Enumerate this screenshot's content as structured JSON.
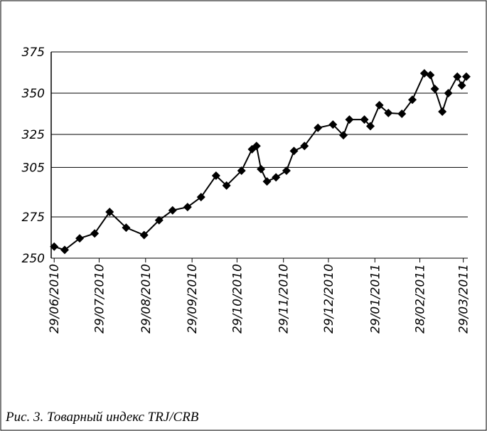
{
  "chart_data": {
    "type": "line",
    "caption": "Рис. 3. Товарный индекс TRJ/CRB",
    "x": [
      "2010-06-29",
      "2010-07-06",
      "2010-07-16",
      "2010-07-26",
      "2010-08-05",
      "2010-08-16",
      "2010-08-28",
      "2010-09-07",
      "2010-09-16",
      "2010-09-26",
      "2010-10-05",
      "2010-10-15",
      "2010-10-22",
      "2010-11-01",
      "2010-11-08",
      "2010-11-11",
      "2010-11-14",
      "2010-11-18",
      "2010-11-24",
      "2010-12-01",
      "2010-12-06",
      "2010-12-13",
      "2010-12-22",
      "2011-01-01",
      "2011-01-08",
      "2011-01-12",
      "2011-01-22",
      "2011-01-26",
      "2011-02-01",
      "2011-02-07",
      "2011-02-16",
      "2011-02-23",
      "2011-03-03",
      "2011-03-07",
      "2011-03-10",
      "2011-03-15",
      "2011-03-19",
      "2011-03-25",
      "2011-03-28",
      "2011-03-31"
    ],
    "series": [
      {
        "color": "#000000",
        "values": [
          257,
          255,
          262,
          265,
          278,
          268.5,
          264,
          273,
          279,
          281,
          287,
          300,
          294,
          303,
          316,
          318,
          304,
          296.5,
          299,
          303,
          315,
          318,
          329,
          331,
          324.5,
          334,
          334,
          330,
          342.7,
          338,
          337.5,
          346,
          362,
          361,
          352.6,
          338.8,
          350,
          360,
          354.7,
          360
        ]
      }
    ],
    "xlim": [
      "2010-06-27",
      "2011-04-01"
    ],
    "xticks": [
      {
        "value": "2010-06-29",
        "label": "29/06/2010"
      },
      {
        "value": "2010-07-29",
        "label": "29/07/2010"
      },
      {
        "value": "2010-08-29",
        "label": "29/08/2010"
      },
      {
        "value": "2010-09-29",
        "label": "29/09/2010"
      },
      {
        "value": "2010-10-29",
        "label": "29/10/2010"
      },
      {
        "value": "2010-11-29",
        "label": "29/11/2010"
      },
      {
        "value": "2010-12-29",
        "label": "29/12/2010"
      },
      {
        "value": "2011-01-29",
        "label": "29/01/2011"
      },
      {
        "value": "2011-02-28",
        "label": "28/02/2011"
      },
      {
        "value": "2011-03-29",
        "label": "29/03/2011"
      }
    ],
    "ylim": [
      250,
      375
    ],
    "yticks": [
      250,
      275,
      305,
      325,
      350,
      375
    ],
    "grid": true
  }
}
